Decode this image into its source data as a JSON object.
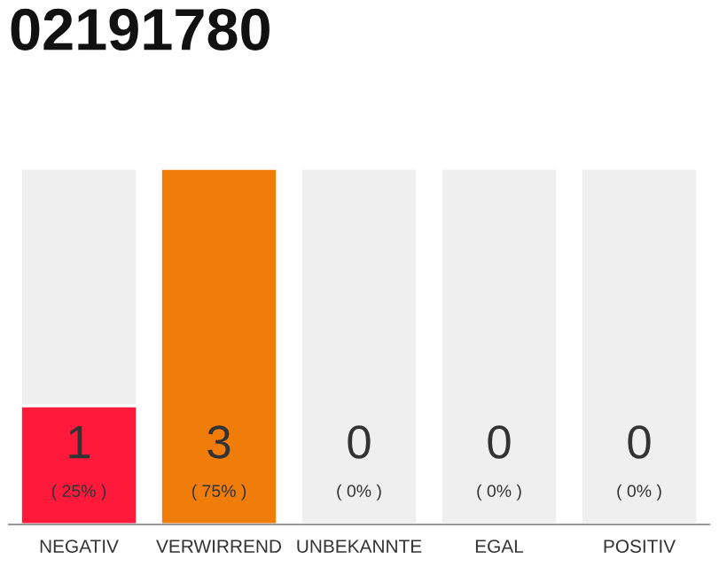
{
  "chart_data": {
    "type": "bar",
    "title": "02191780",
    "categories": [
      "NEGATIV",
      "VERWIRREND",
      "UNBEKANNTE",
      "EGAL",
      "POSITIV"
    ],
    "stacked": true,
    "series": [
      {
        "values": [
          1,
          3,
          0,
          0,
          0
        ],
        "colors": [
          "#ff1a3c",
          "#f07d0a",
          "#efefef",
          "#efefef",
          "#efefef"
        ],
        "value_labels": [
          "1",
          "3",
          "0",
          "0",
          "0"
        ]
      },
      {
        "values": [
          2,
          0,
          3,
          3,
          3
        ],
        "color": "#efefef"
      }
    ],
    "annotations": [
      "( 25% )",
      "( 75% )",
      "( 0% )",
      "( 0% )",
      "( 0% )"
    ],
    "tick_labels": "x"
  }
}
